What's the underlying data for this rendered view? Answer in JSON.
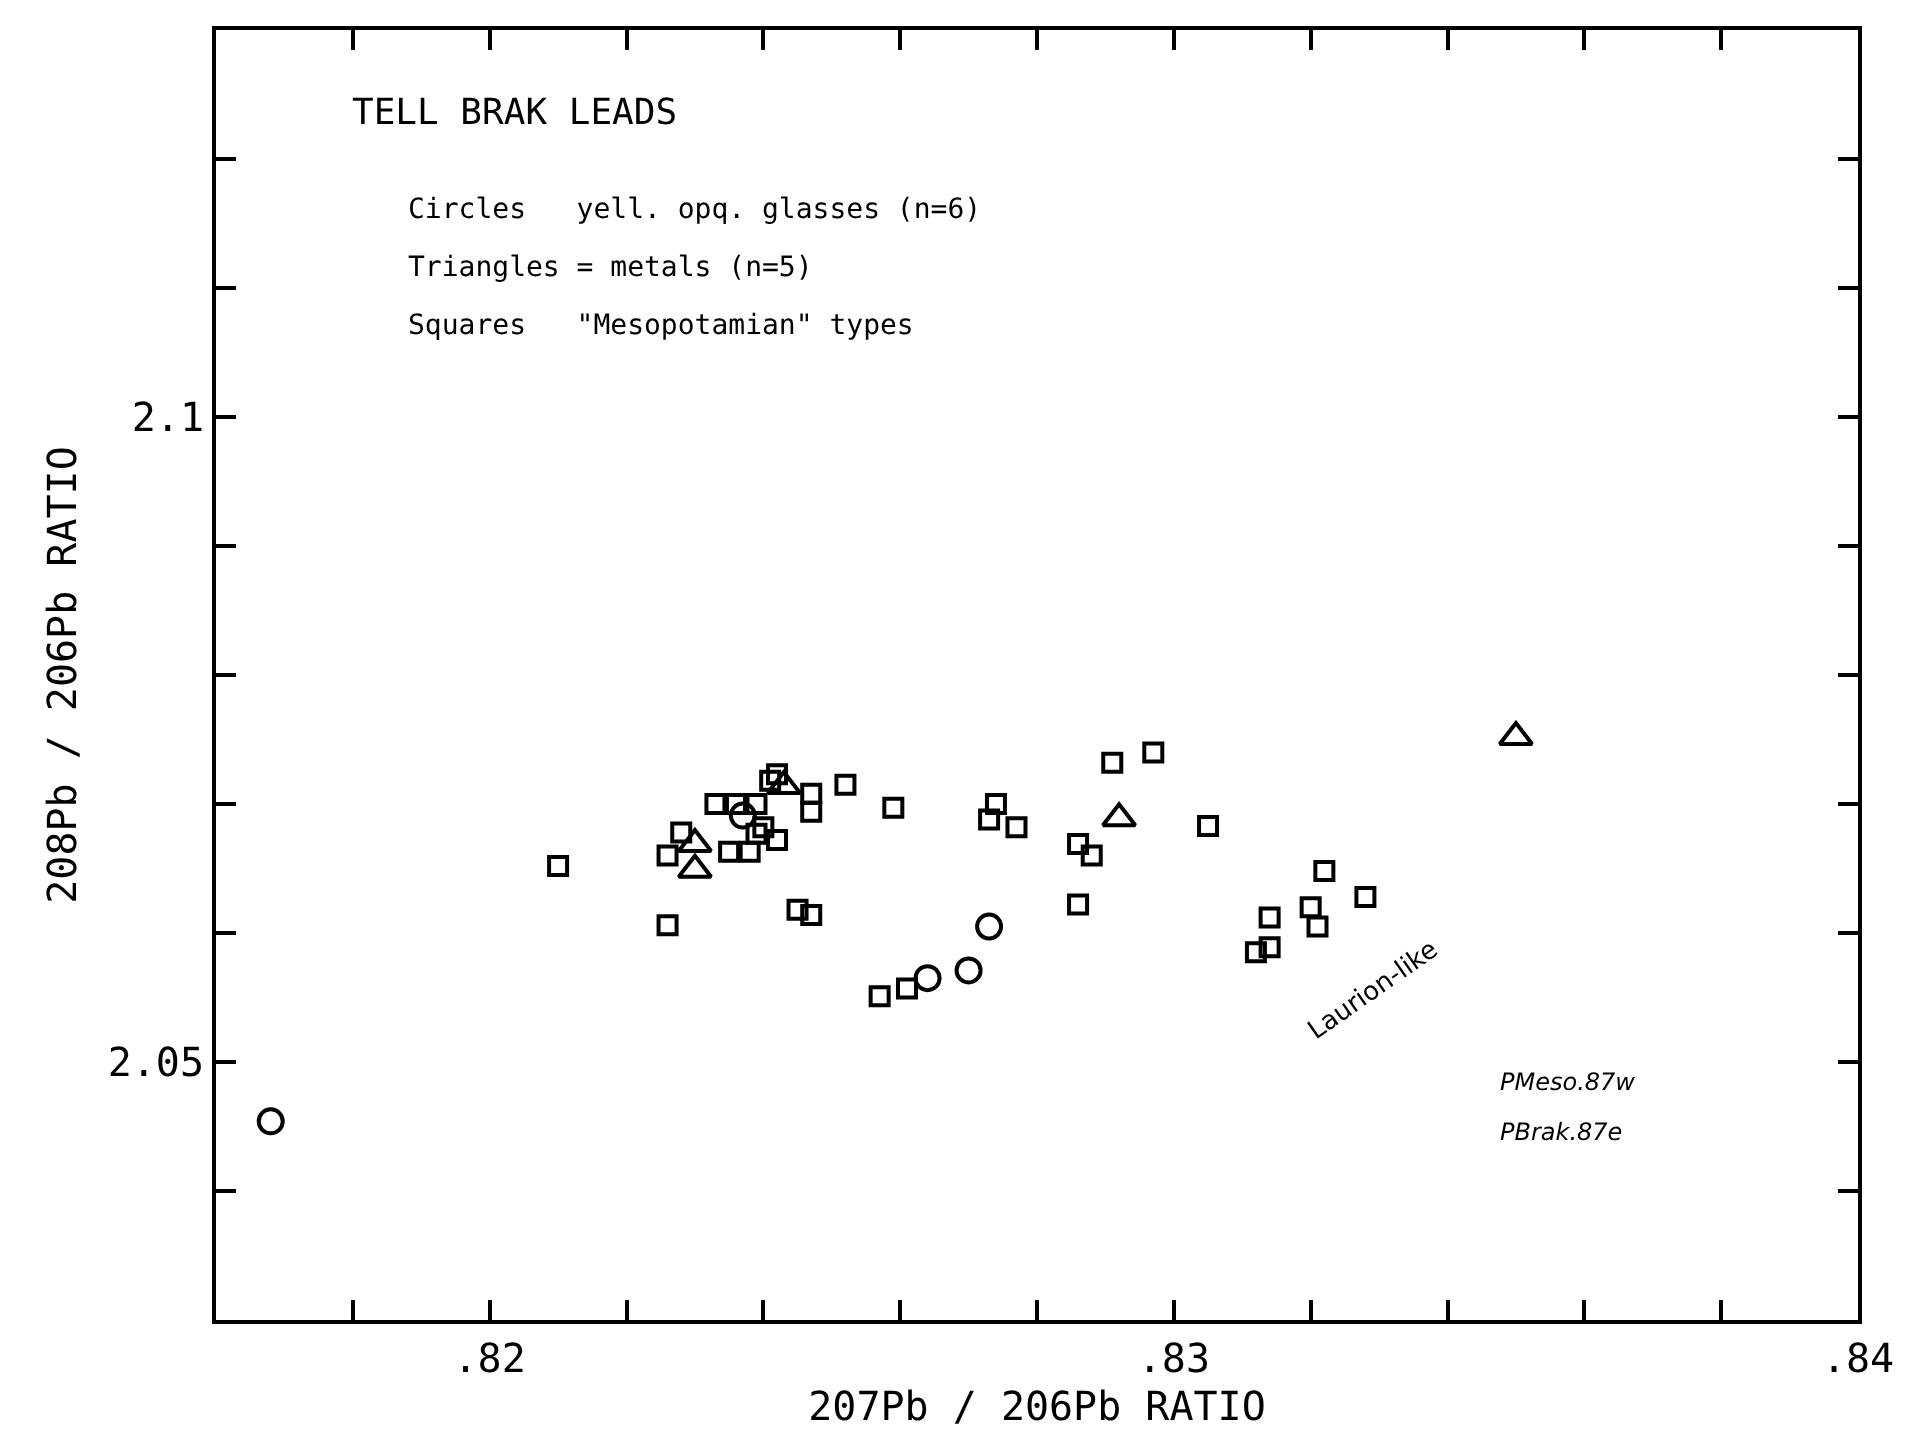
{
  "chart_data": {
    "type": "scatter",
    "xlabel": "207Pb / 206Pb RATIO",
    "ylabel": "208Pb / 206Pb RATIO",
    "xlim": [
      0.816,
      0.84
    ],
    "ylim": [
      2.03,
      2.13
    ],
    "xticks": [
      {
        "value": 0.818,
        "label": null
      },
      {
        "value": 0.82,
        "label": ".82"
      },
      {
        "value": 0.822,
        "label": null
      },
      {
        "value": 0.824,
        "label": null
      },
      {
        "value": 0.826,
        "label": null
      },
      {
        "value": 0.828,
        "label": null
      },
      {
        "value": 0.83,
        "label": ".83"
      },
      {
        "value": 0.832,
        "label": null
      },
      {
        "value": 0.834,
        "label": null
      },
      {
        "value": 0.836,
        "label": null
      },
      {
        "value": 0.838,
        "label": null
      },
      {
        "value": 0.84,
        "label": ".84"
      }
    ],
    "yticks": [
      {
        "value": 2.04,
        "label": null
      },
      {
        "value": 2.05,
        "label": "2.05"
      },
      {
        "value": 2.06,
        "label": null
      },
      {
        "value": 2.07,
        "label": null
      },
      {
        "value": 2.08,
        "label": null
      },
      {
        "value": 2.09,
        "label": null
      },
      {
        "value": 2.1,
        "label": "2.1"
      },
      {
        "value": 2.11,
        "label": null
      },
      {
        "value": 2.12,
        "label": null
      }
    ],
    "series": [
      {
        "color": "#000000",
        "marker": "square",
        "x": [
          0.821,
          0.8226,
          0.8226,
          0.8228,
          0.8233,
          0.8236,
          0.8239,
          0.8235,
          0.8238,
          0.824,
          0.8239,
          0.8242,
          0.8242,
          0.8241,
          0.8247,
          0.8247,
          0.8252,
          0.8259,
          0.8245,
          0.8247,
          0.8257,
          0.8261,
          0.8274,
          0.8273,
          0.8277,
          0.8291,
          0.8297,
          0.8286,
          0.8288,
          0.8286,
          0.8305,
          0.8322,
          0.8328,
          0.8314,
          0.832,
          0.8321,
          0.8314,
          0.8312
        ],
        "values": [
          2.0652,
          2.0606,
          2.066,
          2.0678,
          2.07,
          2.07,
          2.07,
          2.0663,
          2.0663,
          2.0682,
          2.0677,
          2.0672,
          2.0723,
          2.0718,
          2.0708,
          2.0694,
          2.0715,
          2.0697,
          2.0618,
          2.0614,
          2.0551,
          2.0557,
          2.07,
          2.0688,
          2.0682,
          2.0732,
          2.074,
          2.0669,
          2.066,
          2.0622,
          2.0683,
          2.0648,
          2.0628,
          2.0612,
          2.062,
          2.0605,
          2.0589,
          2.0585
        ]
      },
      {
        "color": "#000000",
        "marker": "circle",
        "x": [
          0.8168,
          0.8237,
          0.8264,
          0.827,
          0.8273
        ],
        "values": [
          2.0454,
          2.0691,
          2.0565,
          2.0571,
          2.0605
        ]
      },
      {
        "color": "#000000",
        "marker": "triangle",
        "x": [
          0.8243,
          0.823,
          0.823,
          0.8292,
          0.835
        ],
        "values": [
          2.0714,
          2.0669,
          2.0649,
          2.0689,
          2.0752
        ]
      }
    ],
    "annotations": [
      "TELL BRAK LEADS",
      "Circles   yell. opq. glasses (n=6)",
      "Triangles = metals (n=5)",
      "Squares   \"Mesopotamian\" types",
      "Laurion-like",
      "PMeso.87w",
      "PBrak.87e"
    ]
  }
}
